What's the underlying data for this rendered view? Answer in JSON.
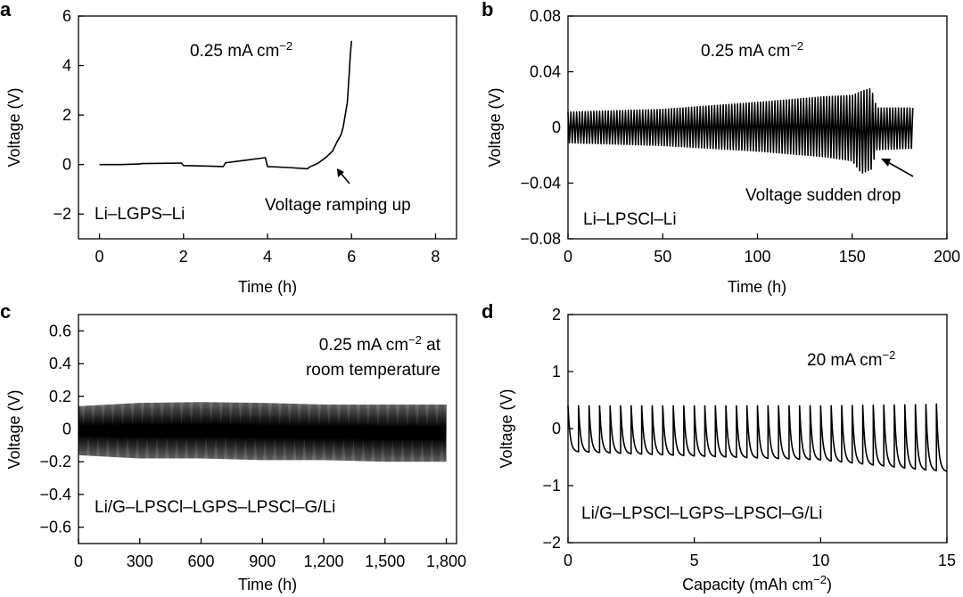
{
  "chart_data": [
    {
      "panel": "a",
      "type": "line",
      "xlabel": "Time (h)",
      "ylabel": "Voltage (V)",
      "xlim": [
        -0.5,
        8.5
      ],
      "ylim": [
        -3,
        6
      ],
      "xticks": [
        0,
        2,
        4,
        6,
        8
      ],
      "yticks": [
        -2,
        0,
        2,
        4,
        6
      ],
      "xtick_labels": [
        "0",
        "2",
        "4",
        "6",
        "8"
      ],
      "ytick_labels": [
        "−2",
        "0",
        "2",
        "4",
        "6"
      ],
      "annotations": [
        "0.25 mA cm−2",
        "Li–LGPS–Li",
        "Voltage ramping up"
      ],
      "series": [
        {
          "x": [
            0,
            0.5,
            0.95,
            1.0,
            1.5,
            1.95,
            2.0,
            2.5,
            2.95,
            3.0,
            3.5,
            3.95,
            4.0,
            4.5,
            4.95,
            5.0,
            5.2,
            5.4,
            5.55,
            5.65,
            5.75,
            5.8,
            5.9,
            5.95,
            5.97,
            6.0
          ],
          "y": [
            0.0,
            0.0,
            0.02,
            0.04,
            0.05,
            0.06,
            -0.04,
            -0.06,
            -0.08,
            0.07,
            0.18,
            0.28,
            -0.08,
            -0.12,
            -0.17,
            -0.1,
            0.05,
            0.3,
            0.55,
            0.9,
            1.2,
            1.5,
            2.5,
            3.8,
            4.4,
            5.0
          ]
        }
      ]
    },
    {
      "panel": "b",
      "type": "line",
      "xlabel": "Time (h)",
      "ylabel": "Voltage (V)",
      "xlim": [
        0,
        200
      ],
      "ylim": [
        -0.08,
        0.08
      ],
      "xticks": [
        0,
        50,
        100,
        150,
        200
      ],
      "yticks": [
        -0.08,
        -0.04,
        0,
        0.04,
        0.08
      ],
      "xtick_labels": [
        "0",
        "50",
        "100",
        "150",
        "200"
      ],
      "ytick_labels": [
        "−0.08",
        "−0.04",
        "0",
        "0.04",
        "0.08"
      ],
      "annotations": [
        "0.25 mA cm−2",
        "Li–LPSCl–Li",
        "Voltage sudden drop"
      ],
      "series": [
        {
          "x_range": [
            0,
            182
          ],
          "cycles": 120,
          "envelope_x": [
            0,
            50,
            100,
            135,
            150,
            155,
            160,
            163,
            182
          ],
          "envelope_upper": [
            0.011,
            0.013,
            0.018,
            0.022,
            0.023,
            0.026,
            0.028,
            0.014,
            0.014
          ],
          "envelope_lower": [
            -0.011,
            -0.013,
            -0.017,
            -0.021,
            -0.024,
            -0.033,
            -0.03,
            -0.016,
            -0.015
          ]
        }
      ]
    },
    {
      "panel": "c",
      "type": "line",
      "xlabel": "Time (h)",
      "ylabel": "Voltage (V)",
      "xlim": [
        0,
        1850
      ],
      "ylim": [
        -0.7,
        0.7
      ],
      "xticks": [
        0,
        300,
        600,
        900,
        1200,
        1500,
        1800
      ],
      "yticks": [
        -0.6,
        -0.4,
        -0.2,
        0,
        0.2,
        0.4,
        0.6
      ],
      "xtick_labels": [
        "0",
        "300",
        "600",
        "900",
        "1,200",
        "1,500",
        "1,800"
      ],
      "ytick_labels": [
        "−0.6",
        "−0.4",
        "−0.2",
        "0",
        "0.2",
        "0.4",
        "0.6"
      ],
      "annotations": [
        "0.25 mA cm−2 at",
        "room temperature",
        "Li/G–LPSCl–LGPS–LPSCl–G/Li"
      ],
      "series": [
        {
          "x_range": [
            0,
            1800
          ],
          "cycles": 450,
          "envelope_x": [
            0,
            300,
            600,
            900,
            1200,
            1500,
            1800
          ],
          "envelope_upper": [
            0.14,
            0.16,
            0.165,
            0.16,
            0.15,
            0.15,
            0.15
          ],
          "envelope_lower": [
            -0.16,
            -0.18,
            -0.18,
            -0.19,
            -0.19,
            -0.2,
            -0.2
          ]
        }
      ]
    },
    {
      "panel": "d",
      "type": "line",
      "xlabel": "Capacity (mAh cm−2)",
      "ylabel": "Voltage (V)",
      "xlim": [
        0,
        15
      ],
      "ylim": [
        -2,
        2
      ],
      "xticks": [
        0,
        5,
        10,
        15
      ],
      "yticks": [
        -2,
        -1,
        0,
        1,
        2
      ],
      "xtick_labels": [
        "0",
        "5",
        "10",
        "15"
      ],
      "ytick_labels": [
        "−2",
        "−1",
        "0",
        "1",
        "2"
      ],
      "annotations": [
        "20 mA cm−2",
        "Li/G–LPSCl–LGPS–LPSCl–G/Li"
      ],
      "series": [
        {
          "x_range": [
            0,
            15
          ],
          "cycles": 36,
          "envelope_x": [
            0,
            5,
            10,
            14,
            15
          ],
          "envelope_upper": [
            0.4,
            0.4,
            0.4,
            0.42,
            0.44
          ],
          "envelope_lower": [
            -0.4,
            -0.48,
            -0.55,
            -0.72,
            -0.75
          ]
        }
      ]
    }
  ]
}
